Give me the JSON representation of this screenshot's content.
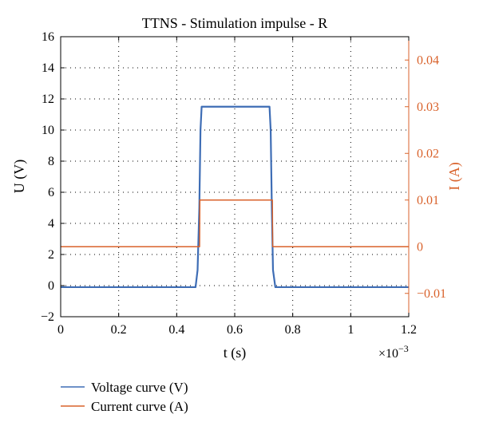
{
  "chart_data": {
    "type": "line",
    "title": "TTNS - Stimulation impulse - R",
    "xlabel": "t (s)",
    "x_multiplier": "×10",
    "x_multiplier_exp": "−3",
    "ylabel_left": "U (V)",
    "ylabel_right": "I (A)",
    "x_unit_scale": 0.001,
    "xlim": [
      0,
      1.2
    ],
    "ylim_left": [
      -2,
      16
    ],
    "ylim_right": [
      -0.015,
      0.045
    ],
    "x_ticks": [
      0,
      0.2,
      0.4,
      0.6,
      0.8,
      1,
      1.2
    ],
    "x_tick_labels": [
      "0",
      "0.2",
      "0.4",
      "0.6",
      "0.8",
      "1",
      "1.2"
    ],
    "y_left_ticks": [
      -2,
      0,
      2,
      4,
      6,
      8,
      10,
      12,
      14,
      16
    ],
    "y_left_tick_labels": [
      "−2",
      "0",
      "2",
      "4",
      "6",
      "8",
      "10",
      "12",
      "14",
      "16"
    ],
    "y_right_ticks": [
      -0.01,
      0,
      0.01,
      0.02,
      0.03,
      0.04
    ],
    "y_right_tick_labels": [
      "−0.01",
      "0",
      "0.01",
      "0.02",
      "0.03",
      "0.04"
    ],
    "grid": true,
    "legend_position": "bottom-left-outside",
    "series": [
      {
        "name": "Voltage curve (V)",
        "axis": "left",
        "color": "#3e6db5",
        "x": [
          0,
          0.465,
          0.472,
          0.478,
          0.482,
          0.486,
          0.6,
          0.72,
          0.724,
          0.728,
          0.732,
          0.74,
          1.2
        ],
        "y": [
          -0.1,
          -0.1,
          1.0,
          5.0,
          10.0,
          11.5,
          11.5,
          11.5,
          10.0,
          5.0,
          1.0,
          -0.1,
          -0.1
        ]
      },
      {
        "name": "Current curve (A)",
        "axis": "right",
        "color": "#d9622b",
        "x": [
          0,
          0.479,
          0.48,
          0.6,
          0.73,
          0.731,
          1.2
        ],
        "y": [
          0,
          0,
          0.01,
          0.01,
          0.01,
          0,
          0
        ]
      }
    ]
  }
}
